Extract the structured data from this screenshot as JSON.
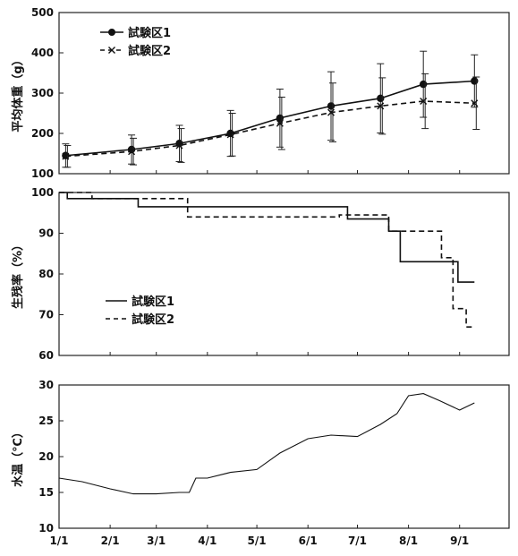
{
  "chart_data": [
    {
      "type": "line",
      "ylabel": "平均体重（g）",
      "ylim": [
        100,
        500
      ],
      "yticks": [
        100,
        200,
        300,
        400,
        500
      ],
      "legend_position": "top-left",
      "grid": false,
      "series": [
        {
          "name": "試験区1",
          "style": "solid-circle",
          "x": [
            "1/5",
            "2/14",
            "3/15",
            "4/15",
            "5/15",
            "6/15",
            "7/15",
            "8/10",
            "9/10"
          ],
          "values": [
            145,
            160,
            175,
            200,
            238,
            268,
            287,
            322,
            330
          ],
          "errors": [
            29,
            36,
            45,
            57,
            72,
            85,
            86,
            82,
            65
          ]
        },
        {
          "name": "試験区2",
          "style": "dashed-cross",
          "x": [
            "1/5",
            "2/14",
            "3/15",
            "4/15",
            "5/15",
            "6/15",
            "7/15",
            "8/10",
            "9/10"
          ],
          "values": [
            143,
            155,
            170,
            197,
            225,
            252,
            268,
            280,
            275
          ],
          "errors": [
            27,
            33,
            42,
            53,
            65,
            73,
            70,
            68,
            65
          ]
        }
      ]
    },
    {
      "type": "line",
      "ylabel": "生残率（%）",
      "ylim": [
        60,
        100
      ],
      "yticks": [
        60,
        70,
        80,
        90,
        100
      ],
      "legend_position": "bottom-left",
      "grid": false,
      "series": [
        {
          "name": "試験区1",
          "style": "solid-step",
          "x": [
            "1/1",
            "1/6",
            "2/18",
            "6/25",
            "7/20",
            "7/27",
            "8/31",
            "9/1",
            "9/10"
          ],
          "values": [
            100,
            98.5,
            96.5,
            93.5,
            90.5,
            83,
            78,
            78,
            78
          ]
        },
        {
          "name": "試験区2",
          "style": "dashed-step",
          "x": [
            "1/1",
            "1/21",
            "3/20",
            "6/20",
            "7/20",
            "8/21",
            "8/28",
            "9/5",
            "9/10"
          ],
          "values": [
            100,
            98.5,
            94,
            94.5,
            90.5,
            84,
            71.5,
            67,
            67
          ]
        }
      ]
    },
    {
      "type": "line",
      "ylabel": "水温（℃）",
      "ylim": [
        10,
        30
      ],
      "yticks": [
        10,
        15,
        20,
        25,
        30
      ],
      "xtick_labels": [
        "1/1",
        "2/1",
        "3/1",
        "4/1",
        "5/1",
        "6/1",
        "7/1",
        "8/1",
        "9/1"
      ],
      "grid": false,
      "series": [
        {
          "name": "",
          "style": "solid-thin",
          "x": [
            "1/1",
            "1/15",
            "2/1",
            "2/15",
            "3/1",
            "3/15",
            "3/21",
            "3/25",
            "4/1",
            "4/15",
            "5/1",
            "5/15",
            "6/1",
            "6/15",
            "7/1",
            "7/15",
            "7/25",
            "8/1",
            "8/10",
            "8/20",
            "9/1",
            "9/10"
          ],
          "values": [
            17,
            16.5,
            15.5,
            14.8,
            14.8,
            15,
            15,
            17,
            17,
            17.8,
            18.2,
            20.5,
            22.5,
            23,
            22.8,
            24.5,
            26,
            28.5,
            28.8,
            27.8,
            26.5,
            27.5
          ]
        }
      ]
    }
  ]
}
